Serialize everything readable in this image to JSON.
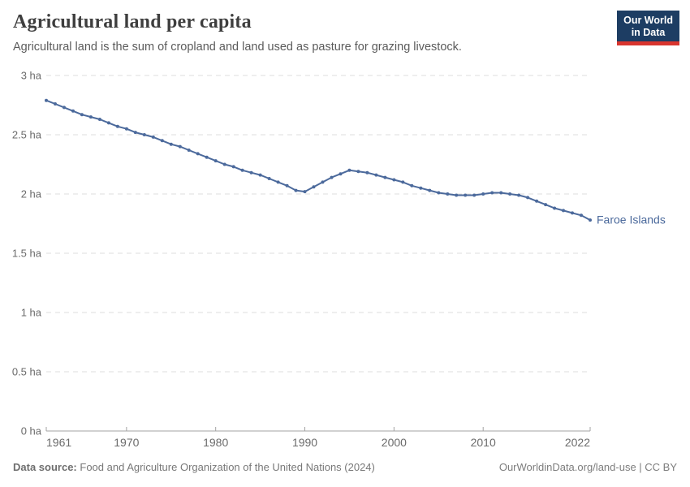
{
  "header": {
    "title": "Agricultural land per capita",
    "subtitle": "Agricultural land is the sum of cropland and land used as pasture for grazing livestock.",
    "logo": {
      "line1": "Our World",
      "line2": "in Data"
    }
  },
  "chart_data": {
    "type": "line",
    "title": "Agricultural land per capita",
    "unit": "ha",
    "xlabel": "",
    "ylabel": "",
    "xlim": [
      1961,
      2022
    ],
    "ylim": [
      0,
      3
    ],
    "grid": "horizontal dashed",
    "legend_position": "end-of-line label",
    "x": [
      1961,
      1962,
      1963,
      1964,
      1965,
      1966,
      1967,
      1968,
      1969,
      1970,
      1971,
      1972,
      1973,
      1974,
      1975,
      1976,
      1977,
      1978,
      1979,
      1980,
      1981,
      1982,
      1983,
      1984,
      1985,
      1986,
      1987,
      1988,
      1989,
      1990,
      1991,
      1992,
      1993,
      1994,
      1995,
      1996,
      1997,
      1998,
      1999,
      2000,
      2001,
      2002,
      2003,
      2004,
      2005,
      2006,
      2007,
      2008,
      2009,
      2010,
      2011,
      2012,
      2013,
      2014,
      2015,
      2016,
      2017,
      2018,
      2019,
      2020,
      2021,
      2022
    ],
    "series": [
      {
        "name": "Faroe Islands",
        "values": [
          2.79,
          2.76,
          2.73,
          2.7,
          2.67,
          2.65,
          2.63,
          2.6,
          2.57,
          2.55,
          2.52,
          2.5,
          2.48,
          2.45,
          2.42,
          2.4,
          2.37,
          2.34,
          2.31,
          2.28,
          2.25,
          2.23,
          2.2,
          2.18,
          2.16,
          2.13,
          2.1,
          2.07,
          2.03,
          2.02,
          2.06,
          2.1,
          2.14,
          2.17,
          2.2,
          2.19,
          2.18,
          2.16,
          2.14,
          2.12,
          2.1,
          2.07,
          2.05,
          2.03,
          2.01,
          2.0,
          1.99,
          1.99,
          1.99,
          2.0,
          2.01,
          2.01,
          2.0,
          1.99,
          1.97,
          1.94,
          1.91,
          1.88,
          1.86,
          1.84,
          1.82,
          1.78
        ]
      }
    ],
    "y_ticks": [
      {
        "value": 0,
        "label": "0 ha"
      },
      {
        "value": 0.5,
        "label": "0.5 ha"
      },
      {
        "value": 1,
        "label": "1 ha"
      },
      {
        "value": 1.5,
        "label": "1.5 ha"
      },
      {
        "value": 2,
        "label": "2 ha"
      },
      {
        "value": 2.5,
        "label": "2.5 ha"
      },
      {
        "value": 3,
        "label": "3 ha"
      }
    ],
    "x_ticks": [
      {
        "value": 1961,
        "label": "1961"
      },
      {
        "value": 1970,
        "label": "1970"
      },
      {
        "value": 1980,
        "label": "1980"
      },
      {
        "value": 1990,
        "label": "1990"
      },
      {
        "value": 2000,
        "label": "2000"
      },
      {
        "value": 2010,
        "label": "2010"
      },
      {
        "value": 2022,
        "label": "2022"
      }
    ]
  },
  "colors": {
    "line": "#4C6A9C",
    "grid": "#dedede",
    "axis": "#a3a3a3",
    "tick_text": "#6b6b6b",
    "logo_bg": "#1d3d63",
    "logo_red": "#d8352e"
  },
  "footer": {
    "datasource_label": "Data source:",
    "datasource_text": "Food and Agriculture Organization of the United Nations (2024)",
    "credit": "OurWorldinData.org/land-use | CC BY"
  }
}
